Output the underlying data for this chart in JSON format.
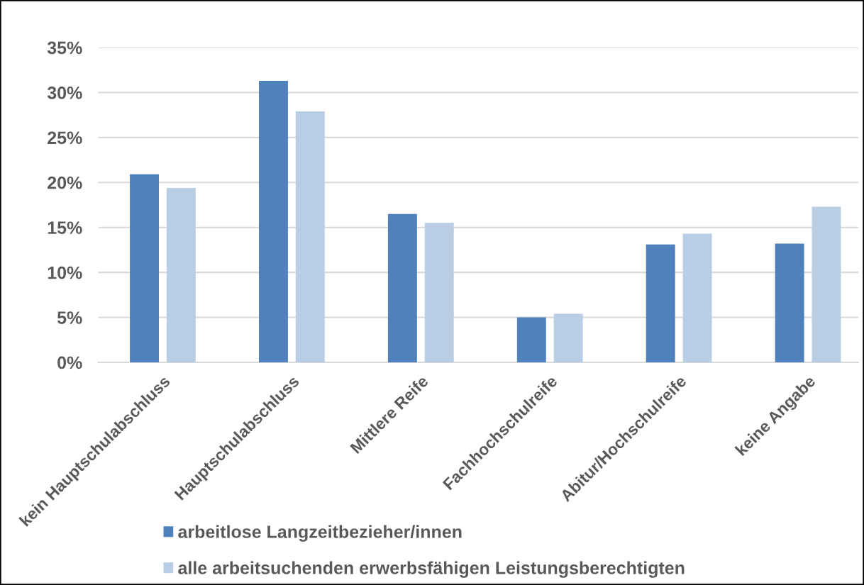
{
  "chart_data": {
    "type": "bar",
    "categories": [
      "kein Hauptschulabschluss",
      "Hauptschulabschluss",
      "Mittlere Reife",
      "Fachhochschulreife",
      "Abitur/Hochschulreife",
      "keine Angabe"
    ],
    "series": [
      {
        "name": "arbeitlose Langzeitbezieher/innen",
        "color": "#4f81bd",
        "values": [
          20.9,
          31.3,
          16.5,
          5.0,
          13.1,
          13.2
        ]
      },
      {
        "name": "alle arbeitsuchenden erwerbsfähigen Leistungsberechtigten",
        "color": "#b9cde5",
        "values": [
          19.4,
          27.9,
          15.5,
          5.4,
          14.3,
          17.3
        ]
      }
    ],
    "ylim": [
      0,
      35
    ],
    "yticks": [
      {
        "value": 0,
        "label": "0%"
      },
      {
        "value": 5,
        "label": "5%"
      },
      {
        "value": 10,
        "label": "10%"
      },
      {
        "value": 15,
        "label": "15%"
      },
      {
        "value": 20,
        "label": "20%"
      },
      {
        "value": 25,
        "label": "25%"
      },
      {
        "value": 30,
        "label": "30%"
      },
      {
        "value": 35,
        "label": "35%"
      }
    ],
    "grid": "y",
    "legend": "bottom"
  }
}
